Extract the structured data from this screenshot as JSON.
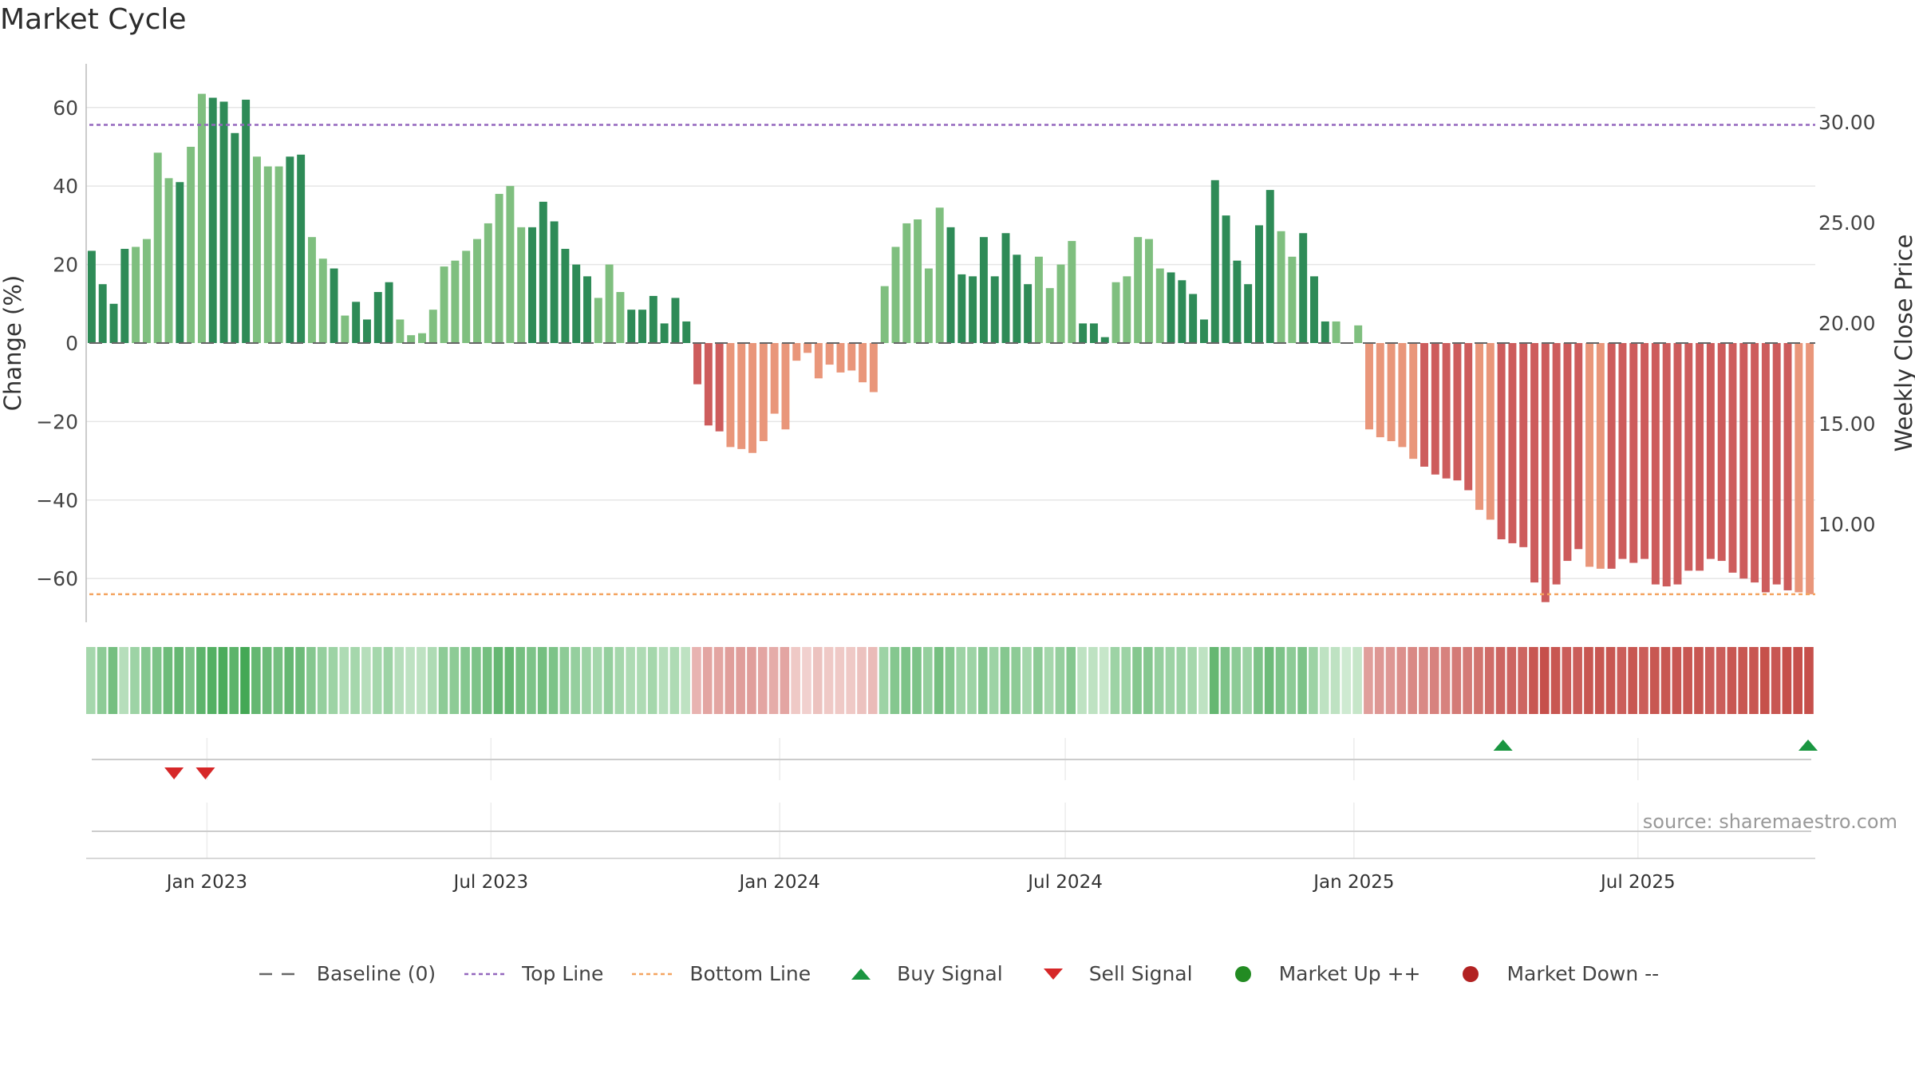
{
  "title": "Market Cycle",
  "source": "source: sharemaestro.com",
  "colors": {
    "up_dark": "#2e8b57",
    "up_light": "#7fbf7f",
    "down_dark": "#cd5c5c",
    "down_light": "#e9967a",
    "top_line": "#9467bd",
    "bottom_line": "#f4a460",
    "baseline": "#666666",
    "buy": "#1a9641",
    "sell": "#d62728",
    "market_up": "#228b22",
    "market_down": "#b22222"
  },
  "legend": [
    {
      "key": "baseline",
      "label": "Baseline (0)",
      "icon": "dashed-line"
    },
    {
      "key": "top",
      "label": "Top Line",
      "icon": "dotted-line"
    },
    {
      "key": "bottom",
      "label": "Bottom Line",
      "icon": "dotted-line"
    },
    {
      "key": "buy",
      "label": "Buy Signal",
      "icon": "triangle-up"
    },
    {
      "key": "sell",
      "label": "Sell Signal",
      "icon": "triangle-down"
    },
    {
      "key": "mup",
      "label": "Market Up ++",
      "icon": "circle"
    },
    {
      "key": "mdown",
      "label": "Market Down --",
      "icon": "circle"
    }
  ],
  "chart_data": {
    "type": "bar",
    "title": "Market Cycle",
    "ylabel": "Change (%)",
    "y2label": "Weekly Close Price",
    "ylim": [
      -71,
      72
    ],
    "y2lim": [
      6.1,
      33.2
    ],
    "yticks": [
      60,
      40,
      20,
      0,
      -20,
      -40,
      -60
    ],
    "yticklabels": [
      "60",
      "40",
      "20",
      "0",
      "−20",
      "−40",
      "−60"
    ],
    "y2ticks": [
      30,
      25,
      20,
      15,
      10
    ],
    "y2ticklabels": [
      "30.00",
      "25.00",
      "20.00",
      "15.00",
      "10.00"
    ],
    "x_start": "2022-10-16",
    "x_end": "2025-10-22",
    "xticks": [
      "2023-01-01",
      "2023-07-01",
      "2024-01-01",
      "2024-07-01",
      "2025-01-01",
      "2025-07-01"
    ],
    "xticklabels": [
      "Jan 2023",
      "Jul 2023",
      "Jan 2024",
      "Jul 2024",
      "Jan 2025",
      "Jul 2025"
    ],
    "grid": true,
    "legend_position": "bottom-center",
    "top_line": 55.6,
    "bottom_line": -64,
    "series": [
      {
        "name": "Change (%)",
        "values": [
          23.5,
          15,
          10,
          24,
          24.5,
          26.5,
          48.5,
          42,
          41,
          50,
          63.5,
          62.5,
          61.5,
          53.5,
          62,
          47.5,
          45,
          45,
          47.5,
          48,
          27,
          21.5,
          19,
          7,
          10.5,
          6,
          13,
          15.5,
          6,
          2,
          2.5,
          8.5,
          19.5,
          21,
          23.5,
          26.5,
          30.5,
          38,
          40,
          29.5,
          29.5,
          36,
          31,
          24,
          20,
          17,
          11.5,
          20,
          13,
          8.5,
          8.5,
          12,
          5,
          11.5,
          5.5,
          -10.5,
          -21,
          -22.5,
          -26.5,
          -27,
          -28,
          -25,
          -18,
          -22,
          -4.5,
          -2.5,
          -9,
          -5.5,
          -7.5,
          -7,
          -10,
          -12.5,
          14.5,
          24.5,
          30.5,
          31.5,
          19,
          34.5,
          29.5,
          17.5,
          17,
          27,
          17,
          28,
          22.5,
          15,
          22,
          14,
          20,
          26,
          5,
          5,
          1.5,
          15.5,
          17,
          27,
          26.5,
          19,
          18,
          16,
          12.5,
          6,
          41.5,
          32.5,
          21,
          15,
          30,
          39,
          28.5,
          22,
          28,
          17,
          5.5,
          5.5,
          0,
          4.5,
          -22,
          -24,
          -25,
          -26.5,
          -29.5,
          -31.5,
          -33.5,
          -34.5,
          -35,
          -37.5,
          -42.5,
          -45,
          -50,
          -51,
          -52,
          -61,
          -66,
          -61.5,
          -55.5,
          -52.5,
          -57,
          -57.5,
          -57.5,
          -55,
          -56,
          -55,
          -61.5,
          -62,
          -61.5,
          -58,
          -58,
          -55,
          -55.5,
          -58.5,
          -60,
          -61,
          -63.5,
          -61.5,
          -63,
          -63.5,
          -64
        ]
      }
    ],
    "bar_shade": "ddddlllldllddddlllddlldlddddllllllllllllddddddllldddddddddllllllllllllllllllllddddddddlllldddlllllddddddddddlldddlllllllldddddllddddddddlldddddddddddddddddllllllddddddddddllllllllllllldddddddddddddl",
    "heat_intensity": [
      0.3,
      0.45,
      0.6,
      0.2,
      0.35,
      0.5,
      0.55,
      0.65,
      0.7,
      0.55,
      0.75,
      0.8,
      0.85,
      0.75,
      0.9,
      0.7,
      0.65,
      0.6,
      0.7,
      0.65,
      0.5,
      0.4,
      0.35,
      0.25,
      0.3,
      0.2,
      0.3,
      0.35,
      0.2,
      0.15,
      0.15,
      0.25,
      0.45,
      0.45,
      0.5,
      0.55,
      0.6,
      0.7,
      0.7,
      0.6,
      0.55,
      0.6,
      0.55,
      0.45,
      0.4,
      0.35,
      0.3,
      0.4,
      0.3,
      0.25,
      0.25,
      0.3,
      0.2,
      0.25,
      0.15,
      0.3,
      0.4,
      0.4,
      0.45,
      0.45,
      0.45,
      0.4,
      0.35,
      0.4,
      0.15,
      0.1,
      0.2,
      0.15,
      0.15,
      0.15,
      0.2,
      0.25,
      0.35,
      0.5,
      0.55,
      0.55,
      0.4,
      0.6,
      0.5,
      0.35,
      0.35,
      0.5,
      0.35,
      0.5,
      0.45,
      0.3,
      0.45,
      0.3,
      0.4,
      0.5,
      0.15,
      0.15,
      0.1,
      0.35,
      0.35,
      0.5,
      0.5,
      0.4,
      0.35,
      0.35,
      0.3,
      0.15,
      0.7,
      0.55,
      0.45,
      0.35,
      0.55,
      0.65,
      0.55,
      0.45,
      0.55,
      0.35,
      0.15,
      0.15,
      0.05,
      0.1,
      0.45,
      0.5,
      0.5,
      0.55,
      0.6,
      0.6,
      0.65,
      0.65,
      0.7,
      0.7,
      0.75,
      0.8,
      0.85,
      0.85,
      0.85,
      0.95,
      1,
      0.95,
      0.9,
      0.9,
      0.95,
      0.95,
      0.95,
      0.9,
      0.95,
      0.9,
      0.95,
      0.95,
      0.95,
      0.95,
      0.95,
      0.9,
      0.9,
      0.95,
      0.95,
      0.95,
      1,
      0.95,
      1,
      1,
      1
    ],
    "sell_signals": [
      "2022-12-11",
      "2022-12-31"
    ],
    "buy_signals": [
      "2025-04-06",
      "2025-10-19"
    ]
  }
}
